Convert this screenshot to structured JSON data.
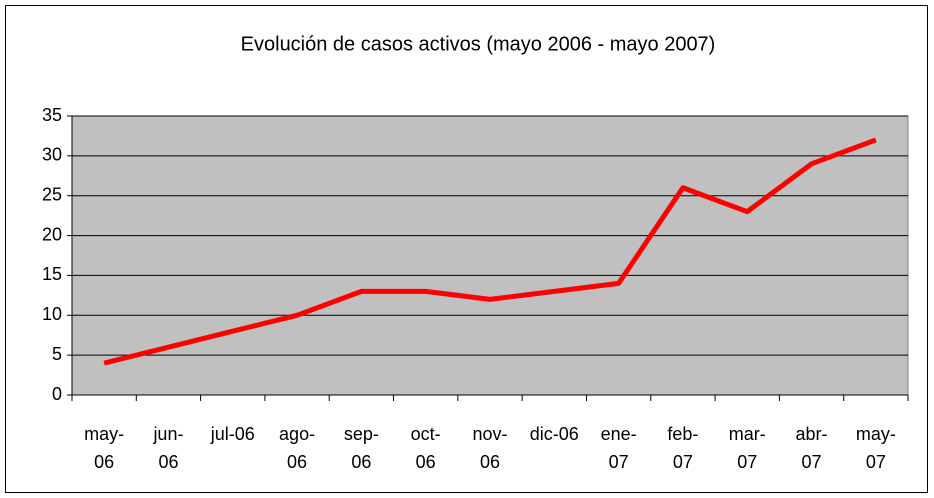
{
  "chart_data": {
    "type": "line",
    "title": "Evolución de casos activos (mayo 2006 - mayo 2007)",
    "categories": [
      "may-06",
      "jun-06",
      "jul-06",
      "ago-06",
      "sep-06",
      "oct-06",
      "nov-06",
      "dic-06",
      "ene-07",
      "feb-07",
      "mar-07",
      "abr-07",
      "may-07"
    ],
    "series": [
      {
        "name": "casos activos",
        "color": "#ff0000",
        "values": [
          4,
          6,
          8,
          10,
          13,
          13,
          12,
          13,
          14,
          26,
          23,
          29,
          32
        ]
      }
    ],
    "ylim": [
      0,
      35
    ],
    "yticks": [
      0,
      5,
      10,
      15,
      20,
      25,
      30,
      35
    ],
    "grid": true
  }
}
